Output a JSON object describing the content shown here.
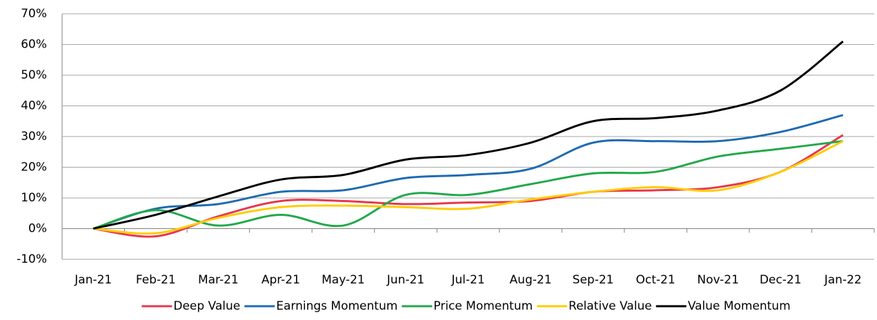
{
  "chart_data": {
    "type": "line",
    "categories": [
      "Jan-21",
      "Feb-21",
      "Mar-21",
      "Apr-21",
      "May-21",
      "Jun-21",
      "Jul-21",
      "Aug-21",
      "Sep-21",
      "Oct-21",
      "Nov-21",
      "Dec-21",
      "Jan-22"
    ],
    "series": [
      {
        "name": "Deep Value",
        "color": "#e8374f",
        "values": [
          0,
          -2.5,
          4,
          9,
          9,
          8,
          8.5,
          9,
          12,
          12.5,
          13.5,
          18.5,
          30.5
        ]
      },
      {
        "name": "Earnings Momentum",
        "color": "#1f6bb0",
        "values": [
          0,
          6.5,
          8,
          12,
          12.5,
          16.5,
          17.5,
          19.5,
          28,
          28.5,
          28.5,
          31.5,
          37
        ]
      },
      {
        "name": "Price Momentum",
        "color": "#22a84a",
        "values": [
          0,
          6,
          1,
          4.5,
          1,
          11,
          11,
          14.5,
          18,
          18.5,
          23.5,
          26,
          28.5
        ]
      },
      {
        "name": "Relative Value",
        "color": "#ffcc00",
        "values": [
          0,
          -1.5,
          3.5,
          7,
          7.5,
          7,
          6.5,
          9.5,
          12,
          13.5,
          12.5,
          18.5,
          28.5
        ]
      },
      {
        "name": "Value Momentum",
        "color": "#000000",
        "values": [
          0,
          4.5,
          10.5,
          16,
          17.5,
          22.5,
          24,
          28,
          35,
          36,
          38.5,
          45,
          61
        ]
      }
    ],
    "ylim": [
      -10,
      70
    ],
    "yticks": [
      {
        "value": -10,
        "label": "-10%"
      },
      {
        "value": 0,
        "label": "0%"
      },
      {
        "value": 10,
        "label": "10%"
      },
      {
        "value": 20,
        "label": "20%"
      },
      {
        "value": 30,
        "label": "30%"
      },
      {
        "value": 40,
        "label": "40%"
      },
      {
        "value": 50,
        "label": "50%"
      },
      {
        "value": 60,
        "label": "60%"
      },
      {
        "value": 70,
        "label": "70%"
      }
    ],
    "grid": true,
    "legend": "bottom"
  }
}
